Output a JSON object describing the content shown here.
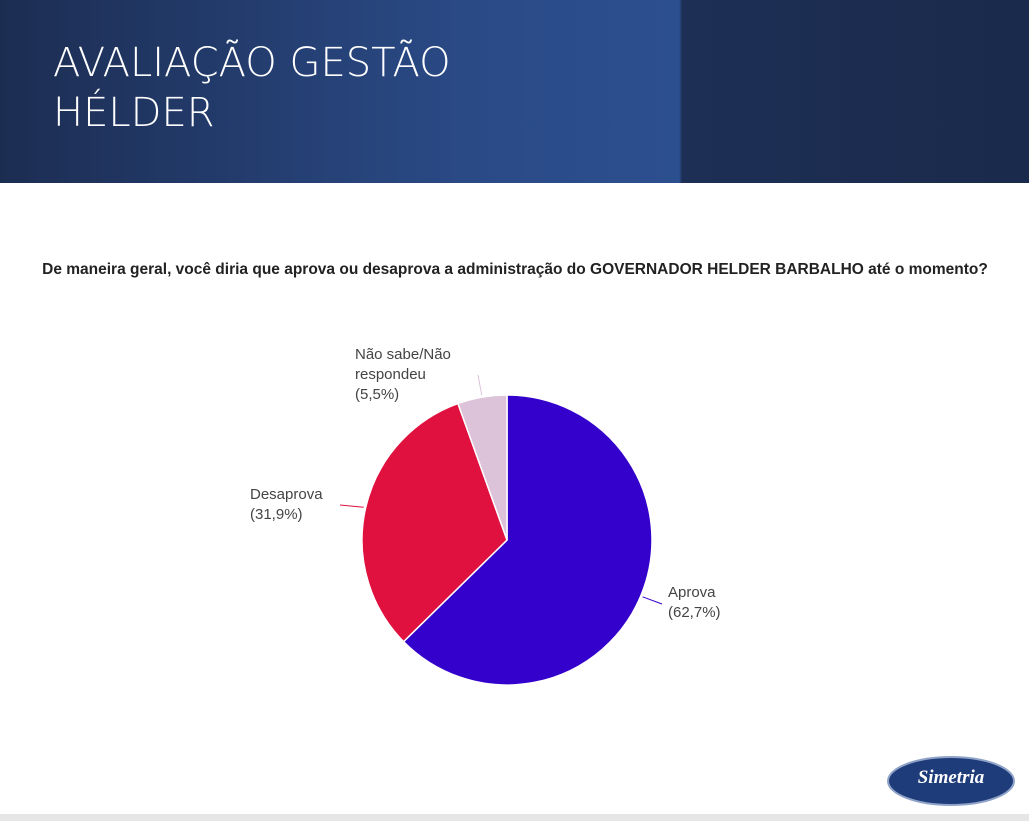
{
  "title": "AVALIAÇÃO GESTÃO HÉLDER",
  "chart_data": {
    "type": "pie",
    "title": "De maneira geral, você diria que aprova ou desaprova a administração do GOVERNADOR HELDER BARBALHO até o momento?",
    "categories": [
      "Aprova",
      "Desaprova",
      "Não sabe/Não respondeu"
    ],
    "values": [
      62.7,
      31.9,
      5.5
    ],
    "value_labels": [
      "(62,7%)",
      "(31,9%)",
      "(5,5%)"
    ],
    "colors": [
      "#3300cc",
      "#e0103f",
      "#dcc3da"
    ]
  },
  "logo": {
    "text": "Simetria"
  }
}
